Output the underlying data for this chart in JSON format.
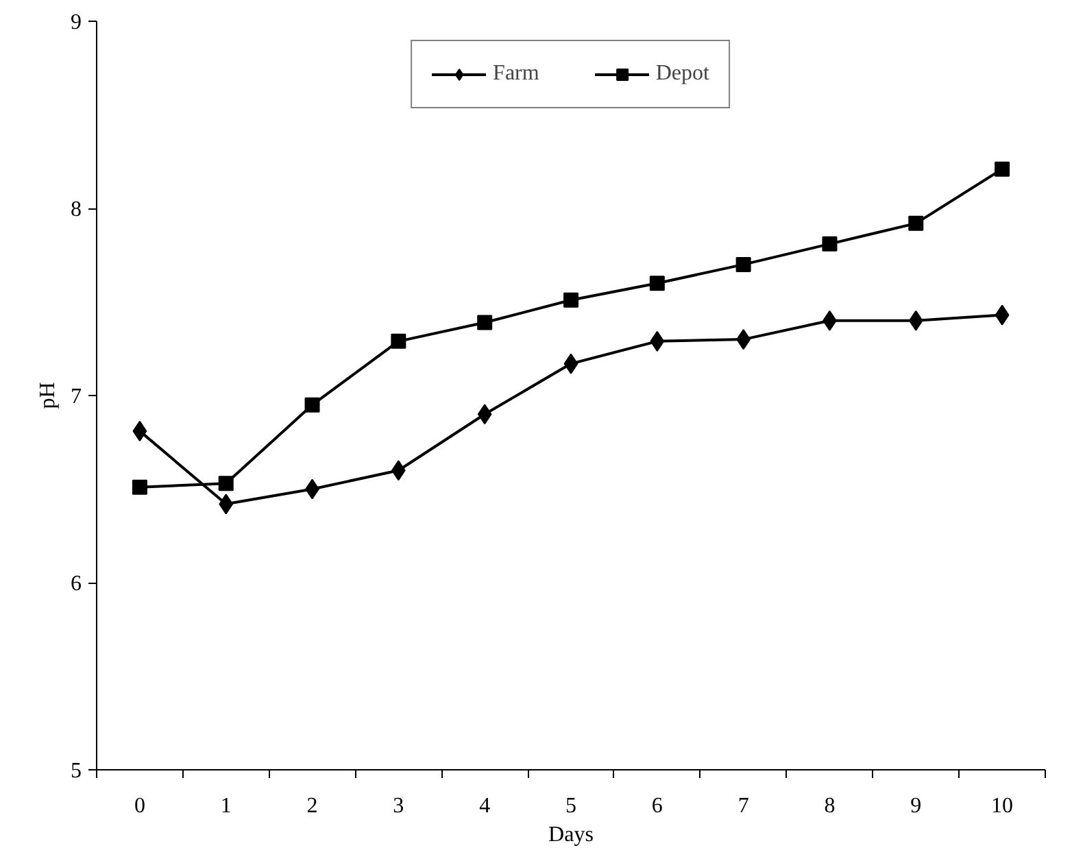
{
  "chart_data": {
    "type": "line",
    "xlabel": "Days",
    "ylabel": "pH",
    "categories": [
      "0",
      "1",
      "2",
      "3",
      "4",
      "5",
      "6",
      "7",
      "8",
      "9",
      "10"
    ],
    "series": [
      {
        "name": "Farm",
        "color": "#000000",
        "marker": "diamond",
        "values": [
          6.81,
          6.42,
          6.5,
          6.6,
          6.9,
          7.17,
          7.29,
          7.3,
          7.4,
          7.4,
          7.43
        ]
      },
      {
        "name": "Depot",
        "color": "#000000",
        "marker": "square",
        "values": [
          6.51,
          6.53,
          6.95,
          7.29,
          7.39,
          7.51,
          7.6,
          7.7,
          7.81,
          7.92,
          8.21
        ]
      }
    ],
    "ylim": [
      5,
      9
    ],
    "yticks": [
      5,
      6,
      7,
      8,
      9
    ],
    "grid": false,
    "legend": "top",
    "line_style": "solid"
  }
}
